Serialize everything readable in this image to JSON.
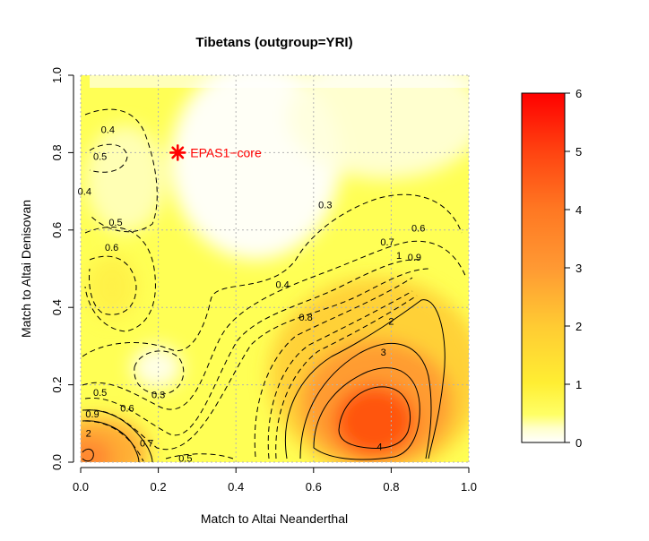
{
  "chart_data": {
    "type": "heatmap",
    "title": "Tibetans (outgroup=YRI)",
    "xlabel": "Match to Altai Neanderthal",
    "ylabel": "Match to Altai Denisovan",
    "xlim": [
      0.0,
      1.0
    ],
    "ylim": [
      0.0,
      1.0
    ],
    "x_ticks": [
      "0.0",
      "0.2",
      "0.4",
      "0.6",
      "0.8",
      "1.0"
    ],
    "y_ticks": [
      "0.0",
      "0.2",
      "0.4",
      "0.6",
      "0.8",
      "1.0"
    ],
    "grid": true,
    "colorbar": {
      "range": [
        0,
        6
      ],
      "ticks": [
        "0",
        "1",
        "2",
        "3",
        "4",
        "5",
        "6"
      ],
      "colors": [
        "#ffffff",
        "#ffff33",
        "#ffcc33",
        "#ff9933",
        "#ff6622",
        "#ff0000"
      ]
    },
    "contour_levels": [
      "0.3",
      "0.4",
      "0.5",
      "0.6",
      "0.7",
      "0.8",
      "0.9",
      "1",
      "2",
      "3",
      "4"
    ],
    "contour_label_positions": [
      {
        "text": "0.4",
        "x": 0.07,
        "y": 0.86
      },
      {
        "text": "0.5",
        "x": 0.05,
        "y": 0.79
      },
      {
        "text": "0.4",
        "x": 0.01,
        "y": 0.7
      },
      {
        "text": "0.5",
        "x": 0.09,
        "y": 0.62
      },
      {
        "text": "0.6",
        "x": 0.08,
        "y": 0.555
      },
      {
        "text": "0.3",
        "x": 0.63,
        "y": 0.665
      },
      {
        "text": "0.4",
        "x": 0.52,
        "y": 0.46
      },
      {
        "text": "0.6",
        "x": 0.87,
        "y": 0.605
      },
      {
        "text": "0.7",
        "x": 0.79,
        "y": 0.57
      },
      {
        "text": "1",
        "x": 0.82,
        "y": 0.535
      },
      {
        "text": "0.9",
        "x": 0.86,
        "y": 0.53
      },
      {
        "text": "0.8",
        "x": 0.58,
        "y": 0.375
      },
      {
        "text": "2",
        "x": 0.8,
        "y": 0.365
      },
      {
        "text": "3",
        "x": 0.78,
        "y": 0.285
      },
      {
        "text": "4",
        "x": 0.77,
        "y": 0.04
      },
      {
        "text": "0.3",
        "x": 0.2,
        "y": 0.175
      },
      {
        "text": "0.5",
        "x": 0.05,
        "y": 0.18
      },
      {
        "text": "0.6",
        "x": 0.12,
        "y": 0.14
      },
      {
        "text": "0.9",
        "x": 0.03,
        "y": 0.125
      },
      {
        "text": "2",
        "x": 0.02,
        "y": 0.075
      },
      {
        "text": "0.7",
        "x": 0.17,
        "y": 0.05
      },
      {
        "text": "0.5",
        "x": 0.27,
        "y": 0.01
      }
    ],
    "annotations": [
      {
        "label": "EPAS1−core",
        "x": 0.25,
        "y": 0.8,
        "color": "#ff0000",
        "marker": "asterisk"
      }
    ]
  }
}
